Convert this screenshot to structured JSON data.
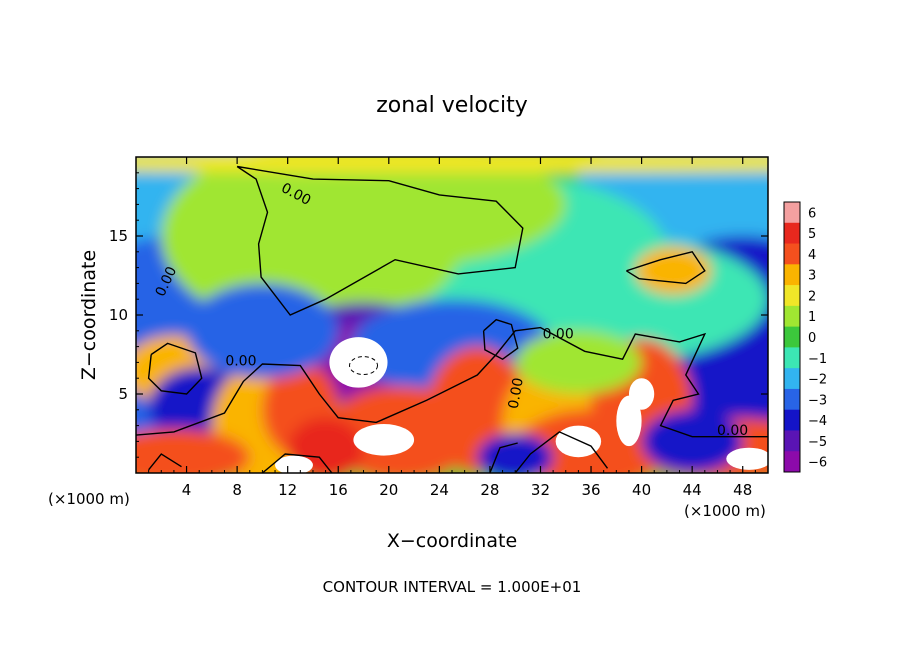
{
  "chart_data": {
    "type": "heatmap",
    "title": "zonal velocity",
    "xlabel": "X−coordinate",
    "ylabel": "Z−coordinate",
    "x_unit_left": "(×1000 m)",
    "x_unit_right": "(×1000 m)",
    "xlim": [
      0,
      50
    ],
    "ylim": [
      0,
      20
    ],
    "xticks": [
      4,
      8,
      12,
      16,
      20,
      24,
      28,
      32,
      36,
      40,
      44,
      48
    ],
    "yticks": [
      5,
      10,
      15
    ],
    "colorbar": {
      "levels": [
        6,
        5,
        4,
        3,
        2,
        1,
        0,
        -1,
        -2,
        -3,
        -4,
        -5,
        -6
      ],
      "tick_labels": [
        "6",
        "5",
        "4",
        "3",
        "2",
        "1",
        "0",
        "−1",
        "−2",
        "−3",
        "−4",
        "−5",
        "−6"
      ],
      "colors": [
        "#f4a0a0",
        "#e8281e",
        "#f4501e",
        "#fab400",
        "#f0e628",
        "#a0e632",
        "#3cc83c",
        "#3ce6b4",
        "#32b4f0",
        "#2864e6",
        "#1414c8",
        "#5a14b4",
        "#8c0aaa"
      ]
    },
    "contour_label": "0.00",
    "contour_labels": [
      {
        "text": "0.00",
        "x": 12.5,
        "y": 17.4
      },
      {
        "text": "0.00",
        "x": 2.7,
        "y": 12.0
      },
      {
        "text": "0.00",
        "x": 8.3,
        "y": 6.8
      },
      {
        "text": "0.00",
        "x": 33.4,
        "y": 8.5
      },
      {
        "text": "0.00",
        "x": 30.4,
        "y": 5.0
      },
      {
        "text": "0.00",
        "x": 47.2,
        "y": 2.4
      }
    ],
    "footer": "CONTOUR INTERVAL = 1.000E+01"
  }
}
